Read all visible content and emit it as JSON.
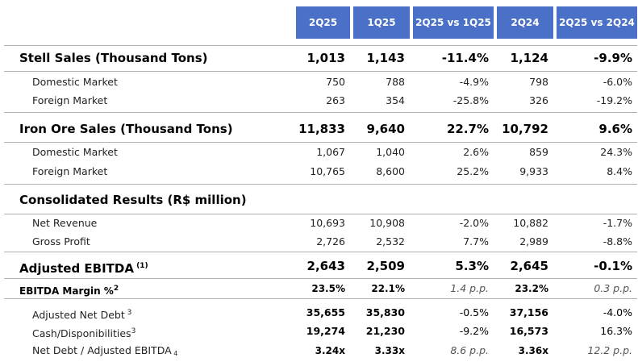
{
  "table": {
    "header": [
      "2Q25",
      "1Q25",
      "2Q25 vs 1Q25",
      "2Q24",
      "2Q25 vs 2Q24"
    ],
    "rows": [
      {
        "label": "Stell Sales (Thousand Tons)",
        "values": [
          "1,013",
          "1,143",
          "-11.4%",
          "1,124",
          "-9.9%"
        ]
      },
      {
        "label": "Domestic Market",
        "values": [
          "750",
          "788",
          "-4.9%",
          "798",
          "-6.0%"
        ]
      },
      {
        "label": "Foreign Market",
        "values": [
          "263",
          "354",
          "-25.8%",
          "326",
          "-19.2%"
        ]
      },
      {
        "label": "Iron Ore Sales (Thousand Tons)",
        "values": [
          "11,833",
          "9,640",
          "22.7%",
          "10,792",
          "9.6%"
        ]
      },
      {
        "label": "Domestic Market",
        "values": [
          "1,067",
          "1,040",
          "2.6%",
          "859",
          "24.3%"
        ]
      },
      {
        "label": "Foreign Market",
        "values": [
          "10,765",
          "8,600",
          "25.2%",
          "9,933",
          "8.4%"
        ]
      },
      {
        "label": "Consolidated Results (R$ million)"
      },
      {
        "label": "Net Revenue",
        "values": [
          "10,693",
          "10,908",
          "-2.0%",
          "10,882",
          "-1.7%"
        ]
      },
      {
        "label": "Gross Profit",
        "values": [
          "2,726",
          "2,532",
          "7.7%",
          "2,989",
          "-8.8%"
        ]
      },
      {
        "label": "Adjusted EBITDA",
        "note": "(1)",
        "values": [
          "2,643",
          "2,509",
          "5.3%",
          "2,645",
          "-0.1%"
        ]
      },
      {
        "label": "EBITDA Margin %",
        "note": "2",
        "values": [
          "23.5%",
          "22.1%",
          "1.4 p.p.",
          "23.2%",
          "0.3 p.p."
        ]
      },
      {
        "label": "Adjusted Net Debt",
        "note": "3",
        "values": [
          "35,655",
          "35,830",
          "-0.5%",
          "37,156",
          "-4.0%"
        ]
      },
      {
        "label": "Cash/Disponibilities",
        "note": "3",
        "values": [
          "19,274",
          "21,230",
          "-9.2%",
          "16,573",
          "16.3%"
        ]
      },
      {
        "label": "Net Debt / Adjusted EBITDA",
        "note": "4",
        "values": [
          "3.24x",
          "3.33x",
          "8.6 p.p.",
          "3.36x",
          "12.2 p.p."
        ]
      }
    ]
  }
}
